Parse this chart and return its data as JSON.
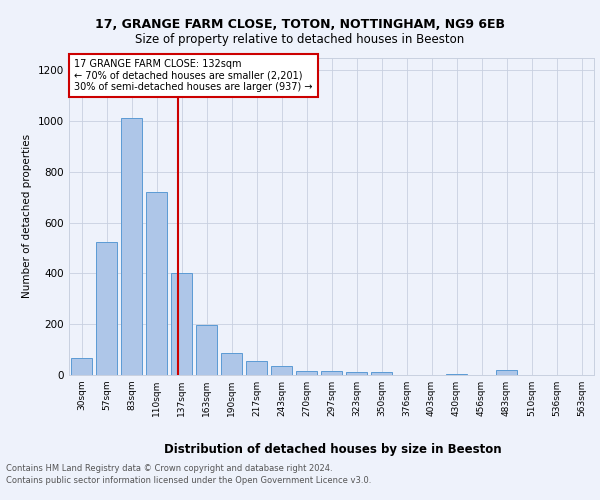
{
  "title1": "17, GRANGE FARM CLOSE, TOTON, NOTTINGHAM, NG9 6EB",
  "title2": "Size of property relative to detached houses in Beeston",
  "xlabel": "Distribution of detached houses by size in Beeston",
  "ylabel": "Number of detached properties",
  "categories": [
    "30sqm",
    "57sqm",
    "83sqm",
    "110sqm",
    "137sqm",
    "163sqm",
    "190sqm",
    "217sqm",
    "243sqm",
    "270sqm",
    "297sqm",
    "323sqm",
    "350sqm",
    "376sqm",
    "403sqm",
    "430sqm",
    "456sqm",
    "483sqm",
    "510sqm",
    "536sqm",
    "563sqm"
  ],
  "values": [
    65,
    525,
    1010,
    720,
    400,
    195,
    85,
    55,
    35,
    15,
    15,
    10,
    10,
    0,
    0,
    5,
    0,
    20,
    0,
    0,
    0
  ],
  "bar_color": "#aec6e8",
  "bar_edge_color": "#5b9bd5",
  "annotation_line1": "17 GRANGE FARM CLOSE: 132sqm",
  "annotation_line2": "← 70% of detached houses are smaller (2,201)",
  "annotation_line3": "30% of semi-detached houses are larger (937) →",
  "ylim": [
    0,
    1250
  ],
  "yticks": [
    0,
    200,
    400,
    600,
    800,
    1000,
    1200
  ],
  "red_line_color": "#cc0000",
  "footer1": "Contains HM Land Registry data © Crown copyright and database right 2024.",
  "footer2": "Contains public sector information licensed under the Open Government Licence v3.0.",
  "bg_color": "#eef2fb",
  "ref_line_x": 3.85
}
